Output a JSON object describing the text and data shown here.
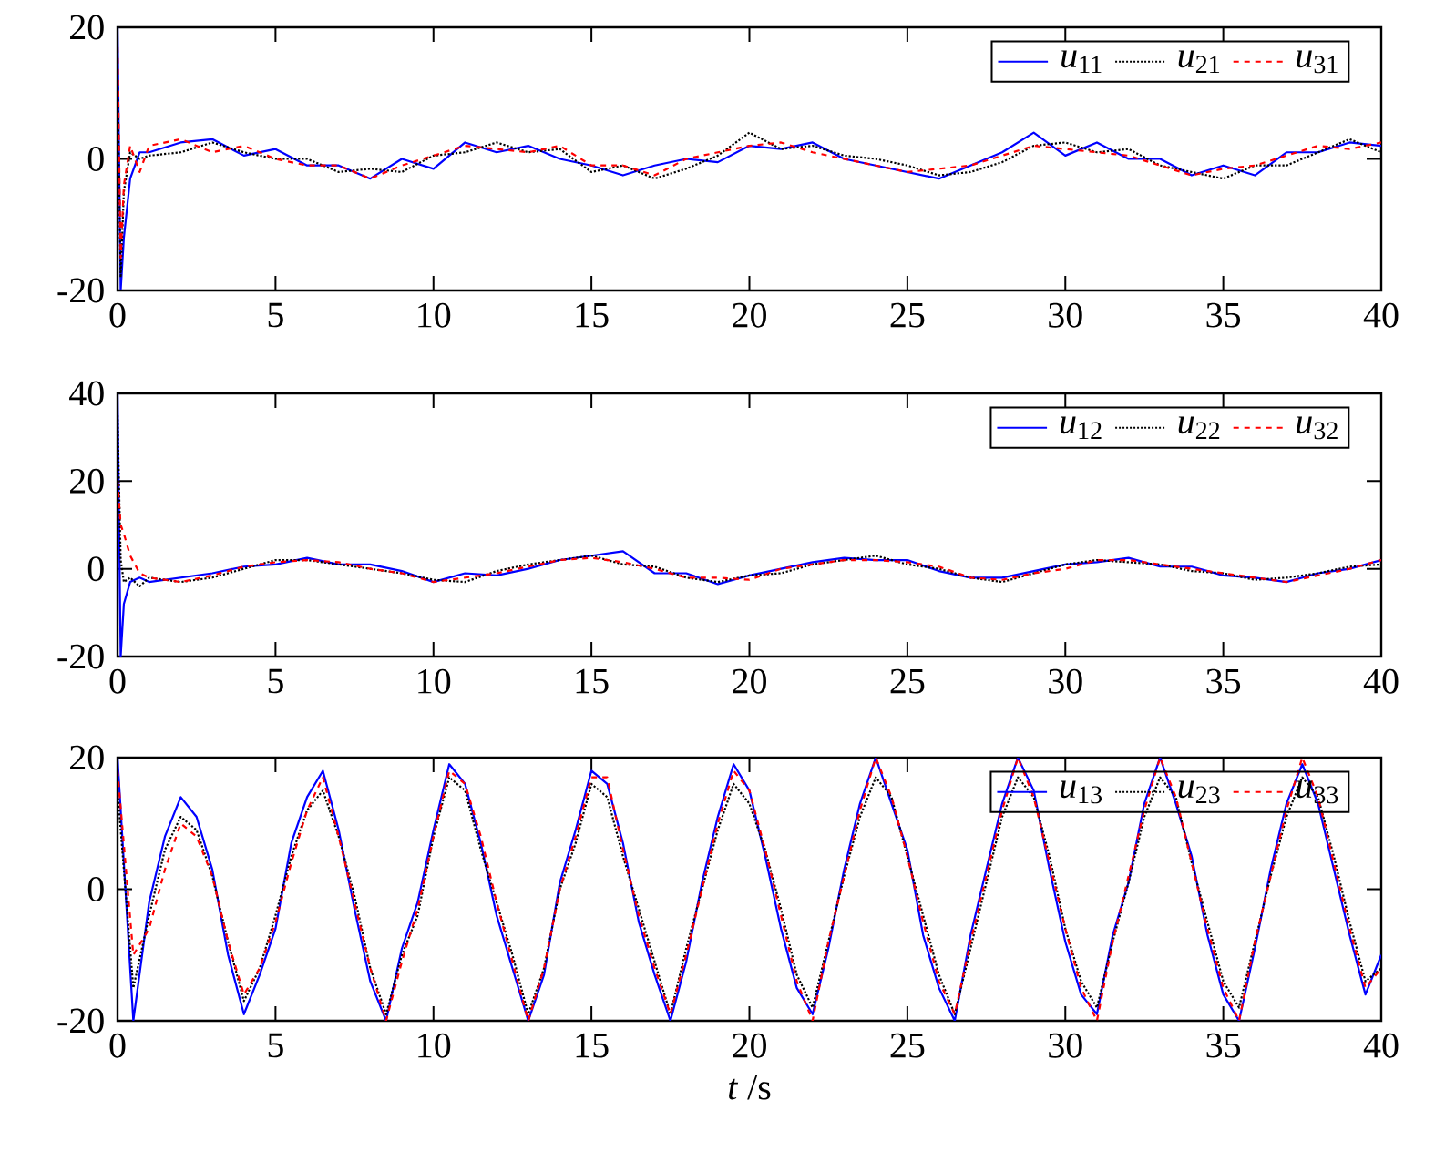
{
  "chart_data": [
    {
      "type": "line",
      "x": [
        0,
        0.1,
        0.2,
        0.4,
        0.7,
        1,
        2,
        3,
        4,
        5,
        6,
        7,
        8,
        9,
        10,
        11,
        12,
        13,
        14,
        15,
        16,
        17,
        18,
        19,
        20,
        21,
        22,
        23,
        24,
        25,
        26,
        27,
        28,
        29,
        30,
        31,
        32,
        33,
        34,
        35,
        36,
        37,
        38,
        39,
        40
      ],
      "xlim": [
        0,
        40
      ],
      "xticks": [
        0,
        5,
        10,
        15,
        20,
        25,
        30,
        35,
        40
      ],
      "ylim": [
        -20,
        20
      ],
      "yticks": [
        -20,
        0,
        20
      ],
      "legend": "top right",
      "series": [
        {
          "name": "*u*$_{11}$",
          "color": "#0000ff",
          "line_style": "solid",
          "values": [
            20,
            -20,
            -12,
            -3,
            1,
            1,
            2.5,
            3,
            0.5,
            1.5,
            -1,
            -1,
            -3,
            0,
            -1.5,
            2.5,
            1,
            2,
            0,
            -1,
            -2.5,
            -1,
            0,
            -0.5,
            2,
            1.5,
            2.5,
            0,
            -1,
            -2,
            -3,
            -1,
            1,
            4,
            0.5,
            2.5,
            0,
            0,
            -2.5,
            -1,
            -2.5,
            1,
            1,
            2.5,
            2
          ]
        },
        {
          "name": "*u*$_{21}$",
          "color": "#000000",
          "line_style": "dotted",
          "values": [
            12,
            -18,
            -5,
            1,
            0,
            0.5,
            1,
            2.5,
            1,
            0,
            0,
            -2,
            -1.5,
            -2,
            0.5,
            1,
            2.5,
            1,
            1.5,
            -2,
            -1,
            -3,
            -1.5,
            0.5,
            4,
            1.5,
            2,
            0.5,
            0,
            -1,
            -2.5,
            -2,
            -0.5,
            2,
            2.5,
            1,
            1.5,
            -1,
            -2,
            -3,
            -1,
            -1,
            1,
            3,
            1
          ]
        },
        {
          "name": "*u*$_{31}$",
          "color": "#ff0000",
          "line_style": "dashed",
          "values": [
            17,
            -15,
            -4,
            2,
            -2,
            2,
            3,
            1,
            2,
            0,
            -1,
            -1,
            -3,
            -1,
            0.5,
            2,
            1.5,
            1,
            2,
            -1,
            -1,
            -2.5,
            0,
            1,
            2,
            2.5,
            1,
            0,
            -1,
            -2,
            -1.5,
            -1,
            0.5,
            2,
            1.5,
            1,
            0.5,
            -1,
            -2.5,
            -1.5,
            -1,
            0.5,
            2,
            1.5,
            2.5
          ]
        }
      ]
    },
    {
      "type": "line",
      "x": [
        0,
        0.1,
        0.2,
        0.4,
        0.7,
        1,
        2,
        3,
        4,
        5,
        6,
        7,
        8,
        9,
        10,
        11,
        12,
        13,
        14,
        15,
        16,
        17,
        18,
        19,
        20,
        21,
        22,
        23,
        24,
        25,
        26,
        27,
        28,
        29,
        30,
        31,
        32,
        33,
        34,
        35,
        36,
        37,
        38,
        39,
        40
      ],
      "xlim": [
        0,
        40
      ],
      "xticks": [
        0,
        5,
        10,
        15,
        20,
        25,
        30,
        35,
        40
      ],
      "ylim": [
        -20,
        40
      ],
      "yticks": [
        -20,
        0,
        20,
        40
      ],
      "legend": "top right",
      "series": [
        {
          "name": "*u*$_{12}$",
          "color": "#0000ff",
          "line_style": "solid",
          "values": [
            40,
            -20,
            -8,
            -3,
            -2,
            -3,
            -2,
            -1,
            0.5,
            1,
            2.5,
            1,
            1,
            -0.5,
            -3,
            -1,
            -1.5,
            0,
            2,
            3,
            4,
            -1,
            -1,
            -3.5,
            -1.5,
            0,
            1.5,
            2.5,
            2,
            2,
            -0.5,
            -2,
            -2,
            -0.5,
            1,
            1.5,
            2.5,
            0.5,
            0.5,
            -1.5,
            -2,
            -3,
            -1,
            0,
            2
          ]
        },
        {
          "name": "*u*$_{22}$",
          "color": "#000000",
          "line_style": "dotted",
          "values": [
            35,
            2,
            -3,
            -2,
            -4,
            -2,
            -3,
            -2,
            0,
            2,
            2,
            1,
            0,
            -1,
            -2.5,
            -3,
            -0.5,
            1,
            2,
            3,
            1,
            0.5,
            -2,
            -3,
            -1.5,
            -1,
            1,
            2,
            3,
            1,
            0,
            -2,
            -3,
            -1,
            1,
            2,
            1.5,
            1,
            -0.5,
            -1,
            -2.5,
            -2,
            -1,
            0.5,
            1
          ]
        },
        {
          "name": "*u*$_{32}$",
          "color": "#ff0000",
          "line_style": "dashed",
          "values": [
            20,
            10,
            8,
            3,
            -1,
            -2,
            -3,
            -1.5,
            0.5,
            1.5,
            2,
            1.5,
            0,
            -1,
            -3,
            -2,
            -1,
            0.5,
            2,
            2.5,
            1.5,
            0,
            -2,
            -2,
            -2.5,
            0,
            1,
            2,
            2,
            1.5,
            0.5,
            -2,
            -2.5,
            -1,
            0,
            2,
            2,
            1,
            0,
            -1,
            -2,
            -3,
            -1.5,
            0,
            2
          ]
        }
      ]
    },
    {
      "type": "line",
      "x": [
        0,
        0.5,
        1,
        1.5,
        2,
        2.5,
        3,
        3.5,
        4,
        4.5,
        5,
        5.5,
        6,
        6.5,
        7,
        7.5,
        8,
        8.5,
        9,
        9.5,
        10,
        10.5,
        11,
        11.5,
        12,
        12.5,
        13,
        13.5,
        14,
        14.5,
        15,
        15.5,
        16,
        16.5,
        17,
        17.5,
        18,
        18.5,
        19,
        19.5,
        20,
        20.5,
        21,
        21.5,
        22,
        22.5,
        23,
        23.5,
        24,
        24.5,
        25,
        25.5,
        26,
        26.5,
        27,
        27.5,
        28,
        28.5,
        29,
        29.5,
        30,
        30.5,
        31,
        31.5,
        32,
        32.5,
        33,
        33.5,
        34,
        34.5,
        35,
        35.5,
        36,
        36.5,
        37,
        37.5,
        38,
        38.5,
        39,
        39.5,
        40
      ],
      "xlim": [
        0,
        40
      ],
      "xticks": [
        0,
        5,
        10,
        15,
        20,
        25,
        30,
        35,
        40
      ],
      "ylim": [
        -20,
        20
      ],
      "yticks": [
        -20,
        0,
        20
      ],
      "legend": "top right",
      "xlabel": "*t* /s",
      "series": [
        {
          "name": "*u*$_{13}$",
          "color": "#0000ff",
          "line_style": "solid",
          "values": [
            20,
            -20,
            -2,
            8,
            14,
            11,
            3,
            -10,
            -19,
            -13,
            -6,
            7,
            14,
            18,
            9,
            -3,
            -14,
            -20,
            -9,
            -2,
            9,
            19,
            16,
            7,
            -4,
            -12,
            -20,
            -13,
            1,
            9,
            18,
            16,
            7,
            -5,
            -13,
            -20,
            -11,
            1,
            11,
            19,
            15,
            5,
            -6,
            -15,
            -19,
            -9,
            3,
            13,
            20,
            13,
            6,
            -7,
            -15,
            -20,
            -7,
            3,
            13,
            20,
            15,
            3,
            -8,
            -16,
            -19,
            -7,
            1,
            13,
            20,
            13,
            5,
            -7,
            -16,
            -20,
            -9,
            3,
            13,
            19,
            13,
            3,
            -7,
            -16,
            -10
          ]
        },
        {
          "name": "*u*$_{23}$",
          "color": "#000000",
          "line_style": "dotted",
          "values": [
            15,
            -15,
            -4,
            6,
            11,
            9,
            2,
            -8,
            -17,
            -12,
            -4,
            5,
            12,
            15,
            8,
            -1,
            -12,
            -19,
            -10,
            -4,
            8,
            17,
            15,
            6,
            -2,
            -10,
            -19,
            -12,
            0,
            7,
            16,
            14,
            5,
            -3,
            -11,
            -19,
            -9,
            0,
            9,
            16,
            13,
            6,
            -3,
            -13,
            -18,
            -8,
            2,
            11,
            17,
            14,
            5,
            -4,
            -13,
            -19,
            -9,
            1,
            11,
            17,
            14,
            5,
            -6,
            -14,
            -18,
            -8,
            1,
            11,
            17,
            14,
            4,
            -5,
            -14,
            -18,
            -8,
            2,
            11,
            17,
            14,
            5,
            -5,
            -14,
            -12
          ]
        },
        {
          "name": "*u*$_{33}$",
          "color": "#ff0000",
          "line_style": "dashed",
          "values": [
            18,
            -10,
            -6,
            3,
            10,
            8,
            2,
            -8,
            -16,
            -12,
            -5,
            4,
            12,
            17,
            8,
            -2,
            -12,
            -20,
            -11,
            -3,
            8,
            18,
            16,
            8,
            -2,
            -11,
            -20,
            -12,
            0,
            8,
            17,
            17,
            6,
            -4,
            -12,
            -19,
            -10,
            0,
            10,
            18,
            15,
            6,
            -4,
            -14,
            -20,
            -8,
            2,
            12,
            20,
            14,
            5,
            -5,
            -14,
            -19,
            -8,
            2,
            12,
            20,
            14,
            4,
            -6,
            -15,
            -20,
            -8,
            2,
            12,
            20,
            14,
            4,
            -6,
            -15,
            -20,
            -8,
            2,
            12,
            20,
            14,
            4,
            -6,
            -15,
            -12
          ]
        }
      ]
    }
  ]
}
